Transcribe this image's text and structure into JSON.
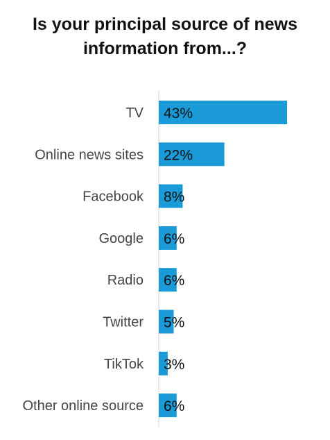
{
  "chart_data": {
    "type": "bar",
    "orientation": "horizontal",
    "title_lines": [
      "Is your principal source of news",
      "information from...?"
    ],
    "categories": [
      "TV",
      "Online news sites",
      "Facebook",
      "Google",
      "Radio",
      "Twitter",
      "TikTok",
      "Other online source"
    ],
    "values": [
      43,
      22,
      8,
      6,
      6,
      5,
      3,
      6
    ],
    "value_labels": [
      "43%",
      "22%",
      "8%",
      "6%",
      "6%",
      "5%",
      "3%",
      "6%"
    ],
    "unit": "%",
    "xlim": [
      0,
      43
    ],
    "grid": false,
    "legend": "none",
    "bar_color": "#1a9ad6",
    "axis_color": "#d0d0d0"
  }
}
